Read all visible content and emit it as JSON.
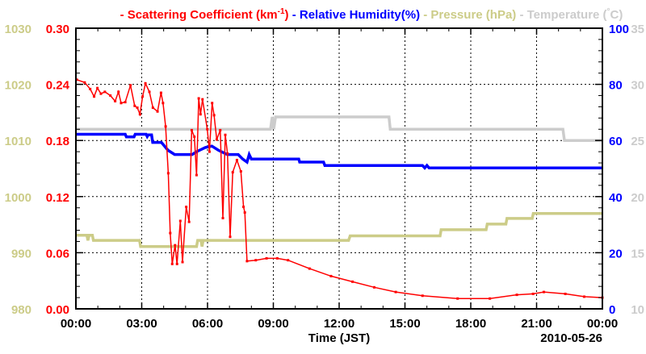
{
  "chart_data": {
    "type": "line",
    "title_parts": [
      {
        "text": "- Scattering Coefficient (km",
        "sup": "-1",
        "after": ")",
        "color": "#ff0000"
      },
      {
        "text": " - Relative Humidity(%)",
        "color": "#0000ff"
      },
      {
        "text": " - Pressure (hPa)",
        "color": "#cccc88"
      },
      {
        "text": " - Temperature (",
        "sup": "°",
        "after": "C)",
        "color": "#cccccc"
      }
    ],
    "xlabel": "Time (JST)",
    "date_label": "2010-05-26",
    "xlim": [
      0,
      24
    ],
    "x_ticks": [
      "00:00",
      "03:00",
      "06:00",
      "09:00",
      "12:00",
      "15:00",
      "18:00",
      "21:00",
      "00:00"
    ],
    "grid": true,
    "axes": {
      "scattering": {
        "ylim": [
          0,
          0.3
        ],
        "ticks": [
          "0.00",
          "0.06",
          "0.12",
          "0.18",
          "0.24",
          "0.30"
        ],
        "color": "#ff0000",
        "side": "left-inner"
      },
      "pressure": {
        "ylim": [
          980,
          1030
        ],
        "ticks": [
          "980",
          "990",
          "1000",
          "1010",
          "1020",
          "1030"
        ],
        "color": "#cccc88",
        "side": "left-outer"
      },
      "humidity": {
        "ylim": [
          0,
          100
        ],
        "ticks": [
          "0",
          "20",
          "40",
          "60",
          "80",
          "100"
        ],
        "color": "#0000ff",
        "side": "right-inner"
      },
      "temperature": {
        "ylim": [
          10,
          35
        ],
        "ticks": [
          "10",
          "15",
          "20",
          "25",
          "30",
          "35"
        ],
        "color": "#cccccc",
        "side": "right-outer"
      }
    },
    "series": [
      {
        "name": "Scattering Coefficient",
        "axis": "scattering",
        "color": "#ff0000",
        "markers": true,
        "points": [
          [
            0.04,
            0.245
          ],
          [
            0.4,
            0.242
          ],
          [
            0.65,
            0.235
          ],
          [
            0.83,
            0.227
          ],
          [
            0.98,
            0.236
          ],
          [
            1.14,
            0.23
          ],
          [
            1.32,
            0.232
          ],
          [
            1.57,
            0.228
          ],
          [
            1.79,
            0.222
          ],
          [
            1.94,
            0.232
          ],
          [
            2.06,
            0.22
          ],
          [
            2.25,
            0.221
          ],
          [
            2.49,
            0.239
          ],
          [
            2.68,
            0.217
          ],
          [
            2.8,
            0.215
          ],
          [
            2.92,
            0.208
          ],
          [
            3.04,
            0.227
          ],
          [
            3.17,
            0.241
          ],
          [
            3.35,
            0.232
          ],
          [
            3.51,
            0.215
          ],
          [
            3.72,
            0.211
          ],
          [
            3.88,
            0.231
          ],
          [
            3.97,
            0.22
          ],
          [
            4.09,
            0.195
          ],
          [
            4.21,
            0.145
          ],
          [
            4.3,
            0.081
          ],
          [
            4.39,
            0.048
          ],
          [
            4.52,
            0.068
          ],
          [
            4.61,
            0.048
          ],
          [
            4.76,
            0.094
          ],
          [
            4.86,
            0.05
          ],
          [
            5.03,
            0.109
          ],
          [
            5.16,
            0.093
          ],
          [
            5.28,
            0.191
          ],
          [
            5.4,
            0.184
          ],
          [
            5.5,
            0.143
          ],
          [
            5.6,
            0.225
          ],
          [
            5.68,
            0.208
          ],
          [
            5.77,
            0.224
          ],
          [
            5.99,
            0.192
          ],
          [
            6.09,
            0.168
          ],
          [
            6.21,
            0.22
          ],
          [
            6.3,
            0.207
          ],
          [
            6.42,
            0.181
          ],
          [
            6.58,
            0.191
          ],
          [
            6.7,
            0.097
          ],
          [
            6.81,
            0.186
          ],
          [
            6.91,
            0.166
          ],
          [
            7.03,
            0.077
          ],
          [
            7.15,
            0.146
          ],
          [
            7.34,
            0.159
          ],
          [
            7.52,
            0.147
          ],
          [
            7.64,
            0.109
          ],
          [
            7.7,
            0.103
          ],
          [
            7.8,
            0.051
          ],
          [
            8.2,
            0.052
          ],
          [
            8.69,
            0.054
          ],
          [
            9.18,
            0.054
          ],
          [
            9.67,
            0.052
          ],
          [
            10.65,
            0.043
          ],
          [
            11.63,
            0.035
          ],
          [
            12.61,
            0.029
          ],
          [
            13.6,
            0.023
          ],
          [
            14.58,
            0.018
          ],
          [
            15.8,
            0.014
          ],
          [
            17.4,
            0.011
          ],
          [
            18.87,
            0.011
          ],
          [
            20.1,
            0.015
          ],
          [
            20.84,
            0.016
          ],
          [
            21.33,
            0.018
          ],
          [
            22.31,
            0.016
          ],
          [
            23.17,
            0.013
          ],
          [
            24,
            0.012
          ]
        ]
      },
      {
        "name": "Relative Humidity",
        "axis": "humidity",
        "color": "#0000ff",
        "points": [
          [
            0,
            62.2
          ],
          [
            2.25,
            62.2
          ],
          [
            2.3,
            61.3
          ],
          [
            2.65,
            61.3
          ],
          [
            2.7,
            62.2
          ],
          [
            3.2,
            62.2
          ],
          [
            3.25,
            61.4
          ],
          [
            3.3,
            62
          ],
          [
            3.45,
            62
          ],
          [
            3.5,
            59.3
          ],
          [
            3.9,
            59.3
          ],
          [
            4.2,
            56.5
          ],
          [
            4.5,
            55
          ],
          [
            5.3,
            55
          ],
          [
            5.5,
            56
          ],
          [
            5.9,
            57.5
          ],
          [
            6.2,
            58
          ],
          [
            6.5,
            56.5
          ],
          [
            6.9,
            55
          ],
          [
            7.4,
            55
          ],
          [
            7.6,
            53.4
          ],
          [
            7.8,
            52.3
          ],
          [
            7.9,
            55
          ],
          [
            8.0,
            53.4
          ],
          [
            10.16,
            53.4
          ],
          [
            10.2,
            52.3
          ],
          [
            11.29,
            52.3
          ],
          [
            11.35,
            51.1
          ],
          [
            15.8,
            51.1
          ],
          [
            15.9,
            50.2
          ],
          [
            16.0,
            51.1
          ],
          [
            16.1,
            50.2
          ],
          [
            24,
            50.2
          ]
        ]
      },
      {
        "name": "Pressure",
        "axis": "pressure",
        "color": "#cccc88",
        "points": [
          [
            0,
            993.1
          ],
          [
            0.5,
            993.1
          ],
          [
            0.55,
            992.2
          ],
          [
            0.6,
            993.1
          ],
          [
            0.75,
            993.1
          ],
          [
            0.8,
            992.2
          ],
          [
            2.9,
            992.2
          ],
          [
            2.95,
            991.1
          ],
          [
            5.5,
            991.1
          ],
          [
            5.55,
            992.2
          ],
          [
            5.7,
            992.2
          ],
          [
            5.75,
            991.1
          ],
          [
            5.8,
            992.2
          ],
          [
            12.43,
            992.2
          ],
          [
            12.5,
            993
          ],
          [
            16.6,
            993
          ],
          [
            16.65,
            994.1
          ],
          [
            18.7,
            994.1
          ],
          [
            18.75,
            995.1
          ],
          [
            19.6,
            995.1
          ],
          [
            19.65,
            996.1
          ],
          [
            20.8,
            996.1
          ],
          [
            20.85,
            997
          ],
          [
            24,
            997
          ]
        ]
      },
      {
        "name": "Temperature",
        "axis": "temperature",
        "color": "#cccccc",
        "points": [
          [
            0,
            26
          ],
          [
            8.87,
            26
          ],
          [
            8.95,
            27.1
          ],
          [
            9.02,
            26
          ],
          [
            9.1,
            27.1
          ],
          [
            14.27,
            27.1
          ],
          [
            14.33,
            26
          ],
          [
            22.2,
            26
          ],
          [
            22.27,
            25
          ],
          [
            24,
            25
          ]
        ]
      }
    ]
  }
}
